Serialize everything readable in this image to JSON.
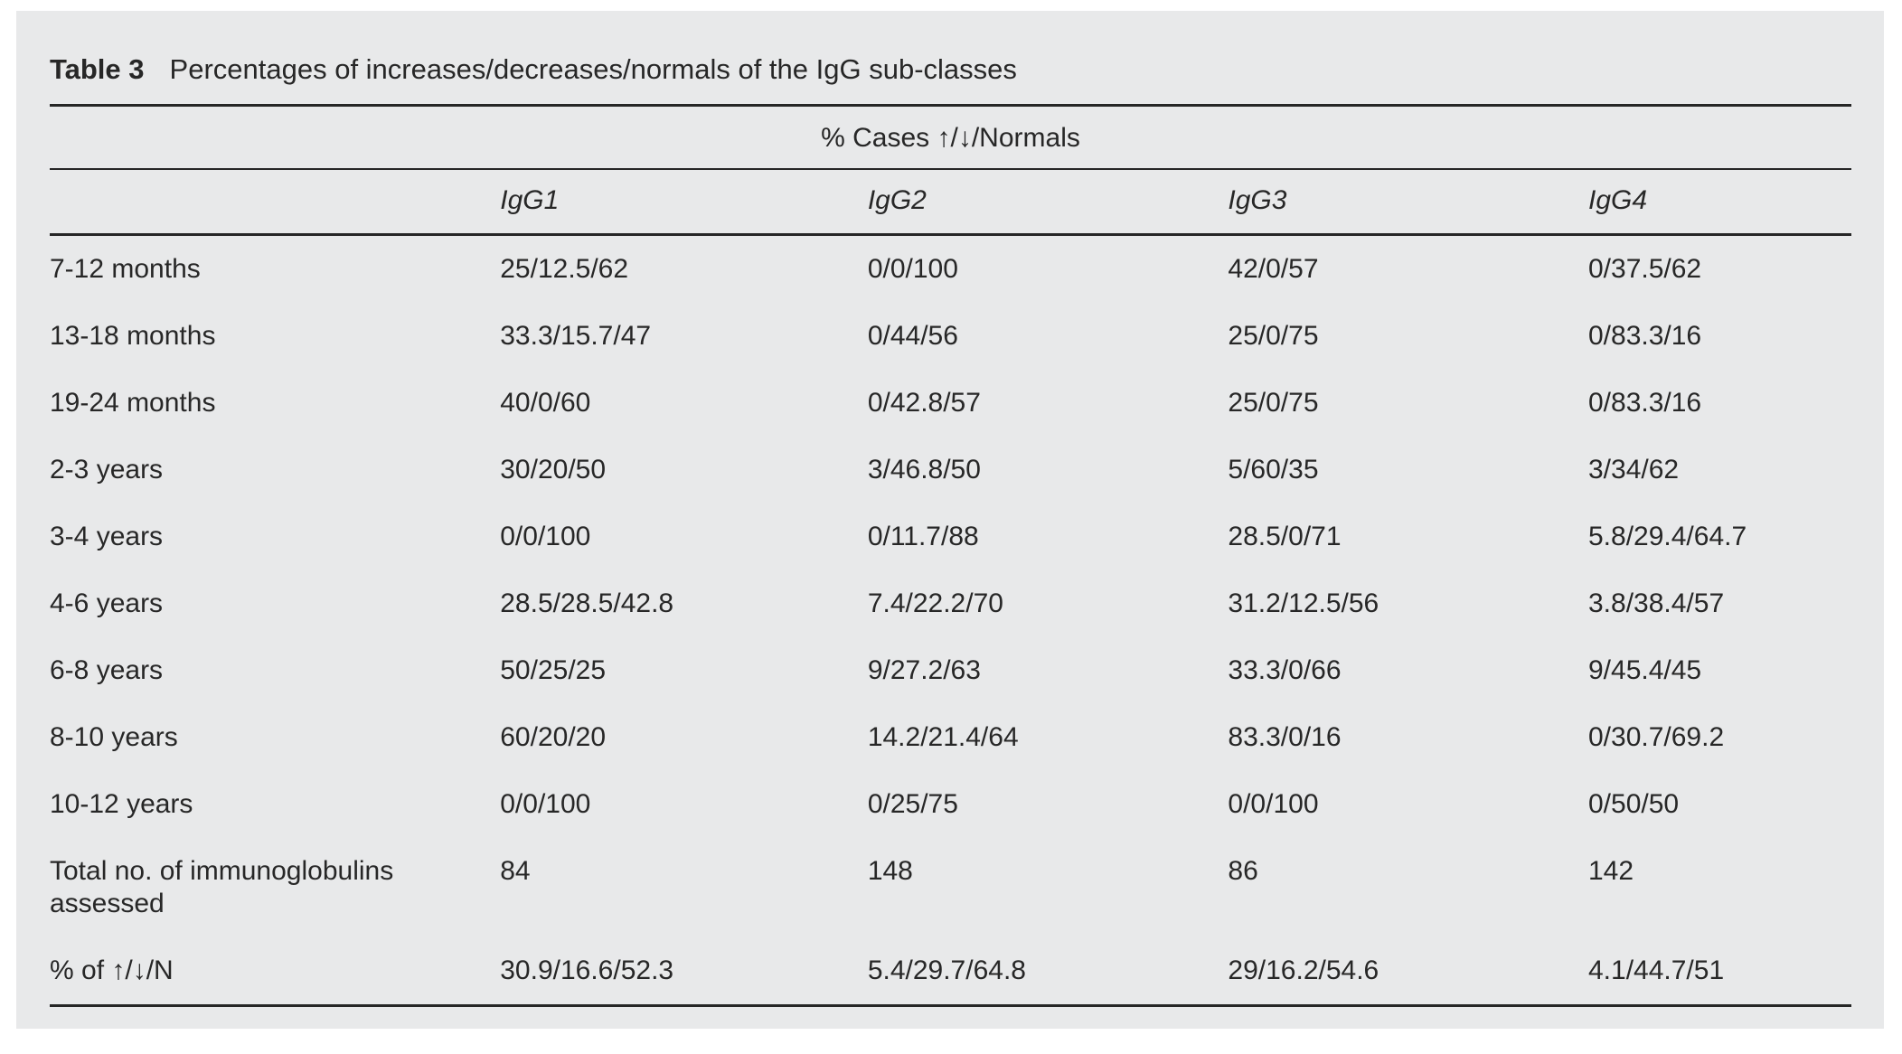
{
  "page": {
    "background": "#ffffff",
    "panel_background": "#e8e9ea",
    "text_color": "#272727",
    "rule_color": "#262626"
  },
  "table": {
    "label": "Table 3",
    "title": "Percentages of increases/decreases/normals of the IgG sub-classes",
    "spanner": "% Cases ↑/↓/Normals",
    "columns": [
      "IgG1",
      "IgG2",
      "IgG3",
      "IgG4"
    ],
    "rows": [
      {
        "label": "7-12 months",
        "values": [
          "25/12.5/62",
          "0/0/100",
          "42/0/57",
          "0/37.5/62"
        ]
      },
      {
        "label": "13-18 months",
        "values": [
          "33.3/15.7/47",
          "0/44/56",
          "25/0/75",
          "0/83.3/16"
        ]
      },
      {
        "label": "19-24 months",
        "values": [
          "40/0/60",
          "0/42.8/57",
          "25/0/75",
          "0/83.3/16"
        ]
      },
      {
        "label": "2-3 years",
        "values": [
          "30/20/50",
          "3/46.8/50",
          "5/60/35",
          "3/34/62"
        ]
      },
      {
        "label": "3-4 years",
        "values": [
          "0/0/100",
          "0/11.7/88",
          "28.5/0/71",
          "5.8/29.4/64.7"
        ]
      },
      {
        "label": "4-6 years",
        "values": [
          "28.5/28.5/42.8",
          "7.4/22.2/70",
          "31.2/12.5/56",
          "3.8/38.4/57"
        ]
      },
      {
        "label": "6-8 years",
        "values": [
          "50/25/25",
          "9/27.2/63",
          "33.3/0/66",
          "9/45.4/45"
        ]
      },
      {
        "label": "8-10 years",
        "values": [
          "60/20/20",
          "14.2/21.4/64",
          "83.3/0/16",
          "0/30.7/69.2"
        ]
      },
      {
        "label": "10-12 years",
        "values": [
          "0/0/100",
          "0/25/75",
          "0/0/100",
          "0/50/50"
        ]
      },
      {
        "label": "Total no. of immunoglobulins assessed",
        "values": [
          "84",
          "148",
          "86",
          "142"
        ]
      },
      {
        "label": "% of ↑/↓/N",
        "values": [
          "30.9/16.6/52.3",
          "5.4/29.7/64.8",
          "29/16.2/54.6",
          "4.1/44.7/51"
        ]
      }
    ]
  }
}
